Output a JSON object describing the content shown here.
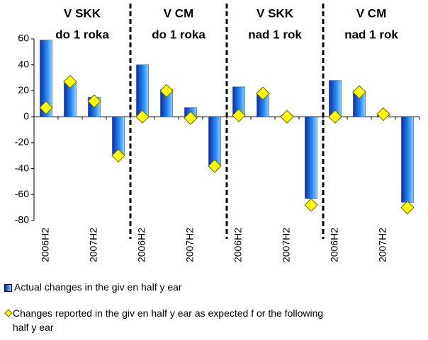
{
  "chart_data": {
    "type": "bar",
    "group_labels": [
      [
        "V SKK",
        "do 1 roka"
      ],
      [
        "V CM",
        "do 1 roka"
      ],
      [
        "V SKK",
        "nad 1 rok"
      ],
      [
        "V CM",
        "nad 1 rok"
      ]
    ],
    "categories": [
      "2006H2",
      null,
      "2007H2",
      null,
      "2006H2",
      null,
      "2007H2",
      null,
      "2006H2",
      null,
      "2007H2",
      null,
      "2006H2",
      null,
      "2007H2",
      null
    ],
    "series": [
      {
        "name": "Actual changes in the giv en half y ear",
        "color": "#1f6fe0",
        "values": [
          59,
          27,
          15,
          -29,
          40,
          21,
          7,
          -37,
          23,
          18,
          1,
          -63,
          28,
          20,
          1,
          -66
        ]
      },
      {
        "name": "Changes reported in the giv en half y ear as expected f or the following half y ear",
        "color": "#ffff00",
        "type": "scatter",
        "values": [
          7,
          27,
          12,
          -30,
          0,
          20,
          -1,
          -38,
          1,
          18,
          0,
          -68,
          0,
          19,
          2,
          -70
        ]
      }
    ],
    "ylim": [
      -80,
      60
    ],
    "yticks": [
      -80,
      -60,
      -40,
      -20,
      0,
      20,
      40,
      60
    ]
  }
}
